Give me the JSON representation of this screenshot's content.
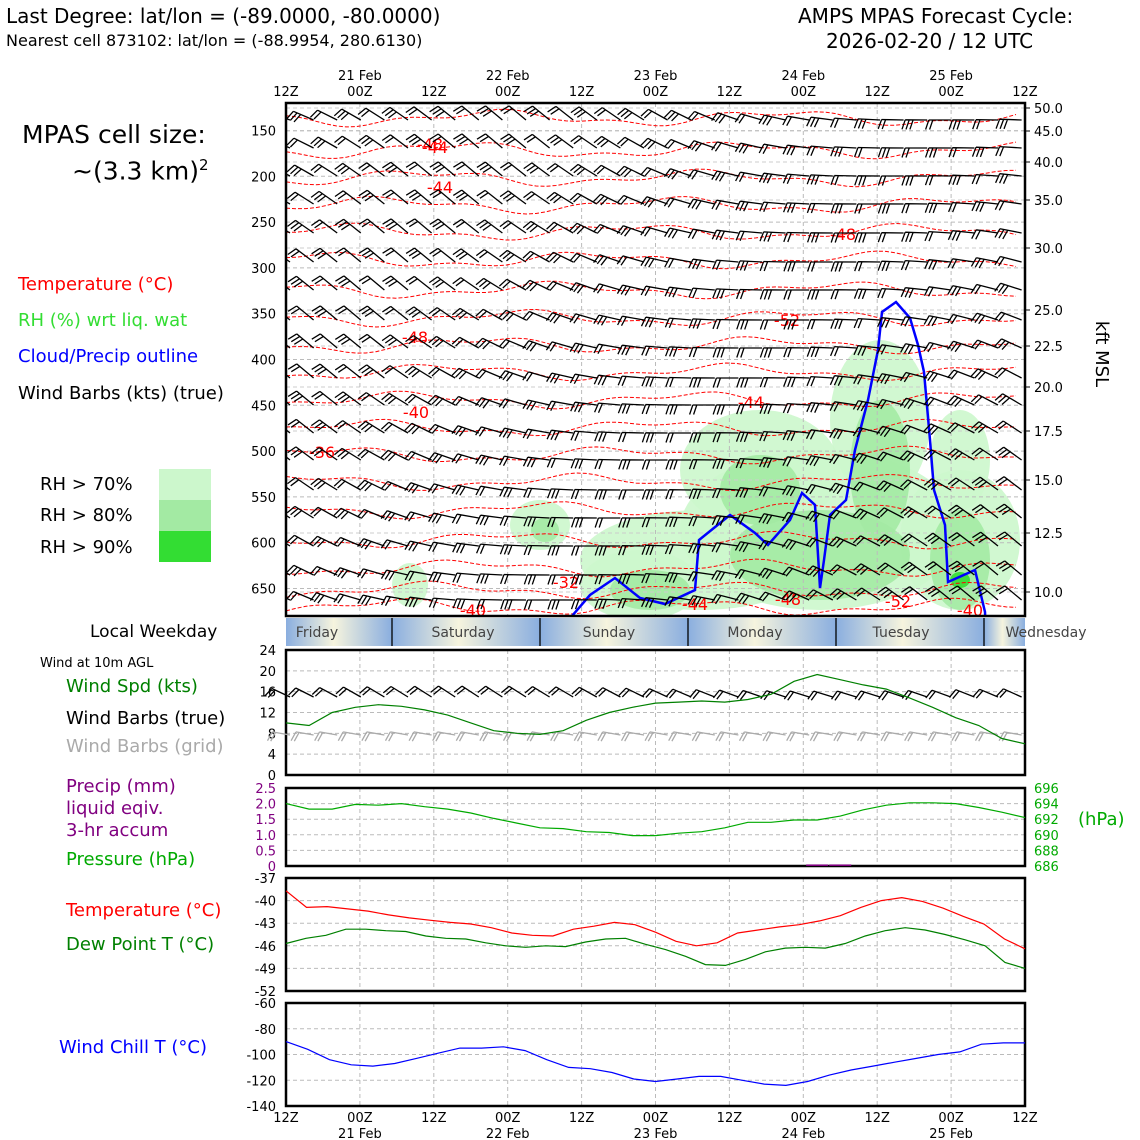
{
  "header": {
    "left_line1": "Last Degree: lat/lon = (-89.0000, -80.0000)",
    "left_line2": "Nearest cell 873102: lat/lon = (-88.9954, 280.6130)",
    "right_line1": "AMPS MPAS Forecast Cycle:",
    "right_line2": "2026-02-20 / 12 UTC"
  },
  "cell_size": {
    "label": "MPAS cell size:",
    "value": "~(3.3 km)",
    "exponent": "2"
  },
  "legend_upper": {
    "temperature": "Temperature (°C)",
    "rh": "RH (%) wrt liq. wat",
    "cloud": "Cloud/Precip outline",
    "wind": "Wind Barbs (kts) (true)",
    "rh70": "RH > 70%",
    "rh80": "RH > 80%",
    "rh90": "RH > 90%"
  },
  "colors": {
    "temperature": "#ff0000",
    "rh_label": "#33dd33",
    "cloud": "#0000ff",
    "rh70": "#ccf7cc",
    "rh80": "#a3eaa3",
    "rh90": "#33dd33",
    "wind_speed": "#008000",
    "grid_barbs": "#aaaaaa",
    "precip": "#800080",
    "pressure": "#00aa00",
    "dewpoint": "#008000",
    "windchill": "#0000ff"
  },
  "time_axis": {
    "labels": [
      "12Z",
      "00Z",
      "12Z",
      "00Z",
      "12Z",
      "00Z",
      "12Z",
      "00Z",
      "12Z",
      "00Z",
      "12Z"
    ],
    "dates": [
      "21 Feb",
      "22 Feb",
      "23 Feb",
      "24 Feb",
      "25 Feb"
    ]
  },
  "weekday": {
    "title": "Local Weekday",
    "days": [
      "Friday",
      "Saturday",
      "Sunday",
      "Monday",
      "Tuesday",
      "Wednesday"
    ]
  },
  "lower_legends": {
    "wind_at": "Wind at 10m AGL",
    "wind_speed": "Wind Spd (kts)",
    "wind_barbs_true": "Wind Barbs (true)",
    "wind_barbs_grid": "Wind Barbs (grid)",
    "precip1": "Precip (mm)",
    "precip2": "liquid eqiv.",
    "precip3": "3-hr accum",
    "pressure": "Pressure (hPa)",
    "pressure_unit": "(hPa)",
    "temperature": "Temperature (°C)",
    "dewpoint": "Dew Point T (°C)",
    "windchill": "Wind Chill T (°C)"
  },
  "chart_data": [
    {
      "type": "line",
      "name": "upper-air time-height section",
      "x": [
        "12Z",
        "00Z",
        "12Z",
        "00Z",
        "12Z",
        "00Z",
        "12Z",
        "00Z",
        "12Z",
        "00Z",
        "12Z"
      ],
      "y_left_label": "pressure (hPa)",
      "y_left_ticks": [
        150,
        200,
        250,
        300,
        350,
        400,
        450,
        500,
        550,
        600,
        650
      ],
      "ylabel": "kft MSL",
      "y_right_ticks": [
        "50.0",
        "45.0",
        "40.0",
        "35.0",
        "30.0",
        "25.0",
        "22.5",
        "20.0",
        "17.5",
        "15.0",
        "12.5",
        "10.0"
      ],
      "temperature_contour_labels": [
        "-44",
        "-44",
        "-48",
        "-48",
        "-52",
        "-44",
        "-40",
        "-36",
        "-32",
        "-44",
        "-48",
        "-52",
        "-40",
        "-40",
        "-48"
      ]
    },
    {
      "type": "line",
      "name": "10m wind speed",
      "ylabel": "",
      "ylim": [
        0,
        24
      ],
      "yticks": [
        0,
        4,
        8,
        12,
        16,
        20,
        24
      ],
      "series": [
        {
          "name": "Wind Spd (kts)",
          "values": [
            10.0,
            9.5,
            12.0,
            13.0,
            13.5,
            13.2,
            12.5,
            11.5,
            10.0,
            8.5,
            8.0,
            7.8,
            8.5,
            10.5,
            12.0,
            13.0,
            13.8,
            14.0,
            14.2,
            14.0,
            14.5,
            15.5,
            18.0,
            19.3,
            18.3,
            17.3,
            16.5,
            14.8,
            13.0,
            11.0,
            9.5,
            7.0,
            6.0
          ]
        }
      ]
    },
    {
      "type": "line",
      "name": "precip and pressure",
      "ylim_precip": [
        0,
        2.5
      ],
      "yticks_precip": [
        "0",
        "0.5",
        "1.0",
        "1.5",
        "2.0",
        "2.5"
      ],
      "ylim_pressure": [
        686,
        696
      ],
      "yticks_pressure": [
        "686",
        "688",
        "690",
        "692",
        "694",
        "696"
      ],
      "series": [
        {
          "name": "Pressure (hPa)",
          "values": [
            694.0,
            693.3,
            693.3,
            693.9,
            693.8,
            694.0,
            693.6,
            693.3,
            692.8,
            692.1,
            691.5,
            690.9,
            690.8,
            690.4,
            690.3,
            689.9,
            689.9,
            690.2,
            690.4,
            690.9,
            691.6,
            691.6,
            691.9,
            691.9,
            692.4,
            693.2,
            693.8,
            694.1,
            694.1,
            694.0,
            693.5,
            692.9,
            692.2
          ]
        },
        {
          "name": "Precip (mm)",
          "values": [
            0,
            0,
            0,
            0,
            0,
            0,
            0,
            0,
            0,
            0,
            0,
            0,
            0,
            0,
            0,
            0,
            0,
            0,
            0,
            0,
            0,
            0,
            0,
            0.05,
            0.05,
            0,
            0,
            0,
            0,
            0,
            0,
            0,
            0
          ]
        }
      ]
    },
    {
      "type": "line",
      "name": "temperature and dew point",
      "ylim": [
        -52,
        -37
      ],
      "yticks": [
        "-37",
        "-40",
        "-43",
        "-46",
        "-49",
        "-52"
      ],
      "series": [
        {
          "name": "Temperature (°C)",
          "values": [
            -38.7,
            -40.9,
            -40.8,
            -41.1,
            -41.4,
            -41.9,
            -42.3,
            -42.6,
            -42.9,
            -43.1,
            -43.6,
            -44.3,
            -44.6,
            -44.7,
            -43.8,
            -43.4,
            -42.9,
            -43.2,
            -44.2,
            -45.4,
            -46.0,
            -45.6,
            -44.3,
            -43.9,
            -43.5,
            -43.2,
            -42.7,
            -42.0,
            -40.9,
            -40.0,
            -39.6,
            -40.1,
            -41.0,
            -42.1,
            -43.1,
            -45.1,
            -46.4
          ]
        },
        {
          "name": "Dew Point T (°C)",
          "values": [
            -45.7,
            -45.0,
            -44.6,
            -43.8,
            -43.8,
            -44.0,
            -44.1,
            -44.7,
            -45.0,
            -45.1,
            -45.6,
            -46.0,
            -46.2,
            -46.0,
            -46.1,
            -45.5,
            -45.1,
            -45.0,
            -45.8,
            -46.5,
            -47.4,
            -48.5,
            -48.6,
            -47.8,
            -46.8,
            -46.3,
            -46.2,
            -46.3,
            -45.7,
            -44.7,
            -44.0,
            -43.6,
            -43.9,
            -44.5,
            -45.2,
            -46.0,
            -48.2,
            -49.0
          ]
        }
      ]
    },
    {
      "type": "line",
      "name": "wind chill",
      "ylim": [
        -140,
        -60
      ],
      "yticks": [
        "-60",
        "-80",
        "-100",
        "-120",
        "-140"
      ],
      "series": [
        {
          "name": "Wind Chill T (°C)",
          "values": [
            -90,
            -96,
            -104,
            -108,
            -109,
            -107,
            -103,
            -99,
            -95,
            -95,
            -94,
            -97,
            -104,
            -110,
            -111,
            -114,
            -119,
            -121,
            -119,
            -117,
            -117,
            -120,
            -123,
            -124,
            -121,
            -116,
            -112,
            -109,
            -106,
            -103,
            -100,
            -98,
            -92,
            -91,
            -91
          ]
        }
      ]
    }
  ]
}
